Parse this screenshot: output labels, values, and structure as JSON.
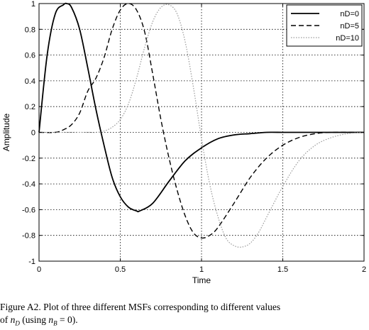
{
  "chart_data": {
    "type": "line",
    "xlabel": "Time",
    "ylabel": "Amplitude",
    "xlim": [
      0,
      2
    ],
    "ylim": [
      -1,
      1
    ],
    "xticks": [
      0,
      0.5,
      1,
      1.5,
      2
    ],
    "xtick_labels": [
      "0",
      "0.5",
      "1",
      "1.5",
      "2"
    ],
    "yticks": [
      1,
      0.8,
      0.6,
      0.4,
      0.2,
      0,
      -0.2,
      -0.4,
      -0.6,
      -0.8,
      -1
    ],
    "ytick_labels": [
      "1",
      "0.8",
      "0.6",
      "0.4",
      "0.2",
      "0",
      "-0.2",
      "-0.4",
      "-0.6",
      "-0.8",
      "-1"
    ],
    "grid": true,
    "legend_position": "top-right",
    "series": [
      {
        "name": "nD=0",
        "style": "solid",
        "color": "#000000",
        "x": [
          0,
          0.05,
          0.1,
          0.15,
          0.17,
          0.2,
          0.25,
          0.3,
          0.35,
          0.4,
          0.45,
          0.5,
          0.55,
          0.6,
          0.62,
          0.7,
          0.8,
          0.9,
          1.0,
          1.1,
          1.2,
          1.3,
          1.4,
          1.5,
          1.6,
          1.8,
          2.0
        ],
        "y": [
          0,
          0.6,
          0.92,
          0.99,
          1.0,
          0.97,
          0.8,
          0.5,
          0.18,
          -0.1,
          -0.35,
          -0.5,
          -0.58,
          -0.61,
          -0.61,
          -0.55,
          -0.38,
          -0.22,
          -0.12,
          -0.05,
          -0.02,
          -0.01,
          0,
          0,
          0,
          0,
          0
        ]
      },
      {
        "name": "nD=5",
        "style": "dashed",
        "color": "#000000",
        "x": [
          0,
          0.1,
          0.15,
          0.2,
          0.25,
          0.3,
          0.35,
          0.4,
          0.45,
          0.5,
          0.55,
          0.6,
          0.65,
          0.7,
          0.75,
          0.8,
          0.85,
          0.9,
          0.95,
          1.0,
          1.05,
          1.1,
          1.2,
          1.3,
          1.4,
          1.5,
          1.6,
          1.7,
          1.8,
          2.0
        ],
        "y": [
          0,
          0.0,
          0.02,
          0.06,
          0.15,
          0.32,
          0.42,
          0.58,
          0.8,
          0.95,
          1.0,
          0.95,
          0.78,
          0.45,
          0.1,
          -0.2,
          -0.45,
          -0.65,
          -0.78,
          -0.82,
          -0.8,
          -0.74,
          -0.55,
          -0.35,
          -0.2,
          -0.1,
          -0.04,
          -0.01,
          0,
          0
        ]
      },
      {
        "name": "nD=10",
        "style": "dotted",
        "color": "#000000",
        "x": [
          0,
          0.2,
          0.3,
          0.35,
          0.4,
          0.45,
          0.5,
          0.55,
          0.6,
          0.65,
          0.7,
          0.75,
          0.8,
          0.85,
          0.9,
          0.95,
          1.0,
          1.05,
          1.1,
          1.15,
          1.2,
          1.25,
          1.3,
          1.35,
          1.4,
          1.5,
          1.6,
          1.7,
          1.8,
          1.9,
          2.0
        ],
        "y": [
          0,
          0,
          0,
          0.0,
          0.01,
          0.04,
          0.1,
          0.22,
          0.42,
          0.66,
          0.86,
          0.97,
          0.99,
          0.92,
          0.7,
          0.35,
          -0.05,
          -0.4,
          -0.65,
          -0.82,
          -0.88,
          -0.89,
          -0.86,
          -0.78,
          -0.66,
          -0.42,
          -0.22,
          -0.1,
          -0.04,
          -0.01,
          0
        ]
      }
    ]
  },
  "caption": {
    "label": "Figure A2.",
    "text": "Plot of three different MSFs corresponding to different values",
    "line2_pre": "of",
    "line2_var": "n",
    "line2_var_sub": "D",
    "line2_mid": "(using",
    "line2_var2": "n",
    "line2_var2_sub": "B",
    "line2_post": "= 0)."
  }
}
